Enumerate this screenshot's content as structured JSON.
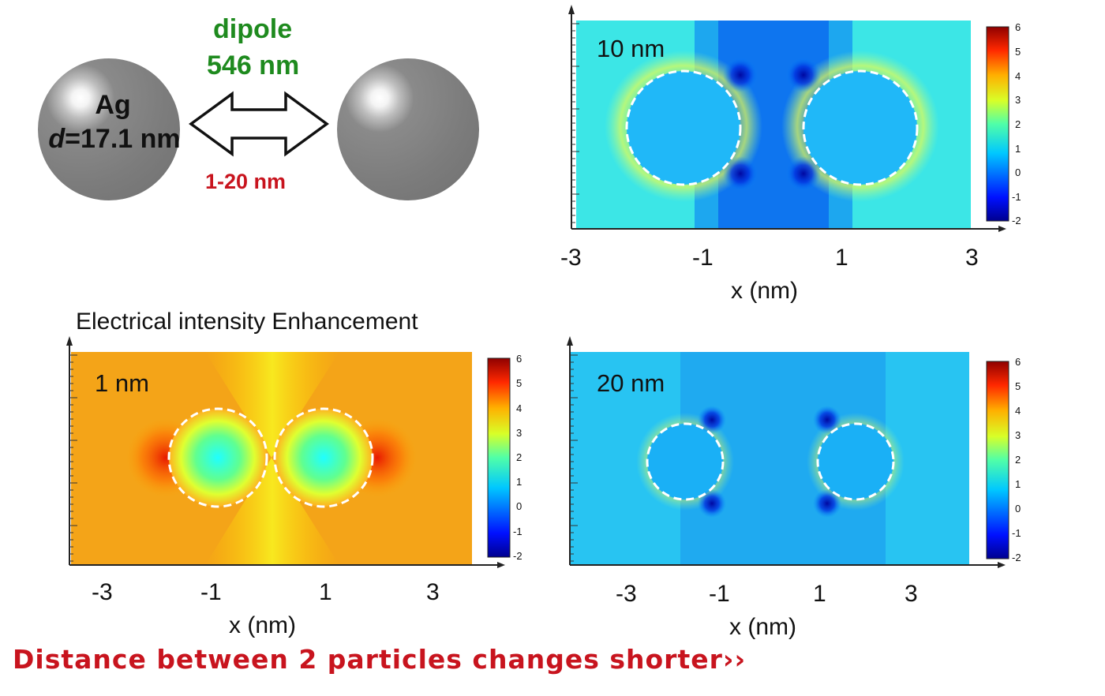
{
  "schematic": {
    "particle_label": "Ag",
    "diameter_label": "d=17.1 nm",
    "mode_label": "dipole",
    "wavelength_label": "546 nm",
    "gap_label": "1-20 nm"
  },
  "section_title": "Electrical intensity Enhancement",
  "bottom_note": "Distance between 2 particles changes shorter››",
  "colors": {
    "green_text": "#1e8a1e",
    "red_text": "#c8141e",
    "particle_gray": "#7c7c7c"
  },
  "chart_data": [
    {
      "type": "heatmap",
      "panel_label": "10 nm",
      "xlabel": "x (nm)",
      "x_ticks": [
        "-3",
        "-1",
        "1",
        "3"
      ],
      "colorbar_ticks": [
        "6",
        "5",
        "4",
        "3",
        "2",
        "1",
        "0",
        "-1",
        "-2"
      ],
      "colorbar_range": [
        -2,
        6
      ],
      "colormap": "jet",
      "background_value": 0.8,
      "particles_outlined": "dashed white circles",
      "particle_count": 2
    },
    {
      "type": "heatmap",
      "panel_label": "1 nm",
      "xlabel": "x (nm)",
      "x_ticks": [
        "-3",
        "-1",
        "1",
        "3"
      ],
      "colorbar_ticks": [
        "6",
        "5",
        "4",
        "3",
        "2",
        "1",
        "0",
        "-1",
        "-2"
      ],
      "colorbar_range": [
        -2,
        6
      ],
      "colormap": "jet",
      "background_value": 3.8,
      "particles_outlined": "dashed white circles",
      "particle_count": 2
    },
    {
      "type": "heatmap",
      "panel_label": "20 nm",
      "xlabel": "x (nm)",
      "x_ticks": [
        "-3",
        "-1",
        "1",
        "3"
      ],
      "colorbar_ticks": [
        "6",
        "5",
        "4",
        "3",
        "2",
        "1",
        "0",
        "-1",
        "-2"
      ],
      "colorbar_range": [
        -2,
        6
      ],
      "colormap": "jet",
      "background_value": 0.6,
      "particles_outlined": "dashed white circles",
      "particle_count": 2
    }
  ]
}
